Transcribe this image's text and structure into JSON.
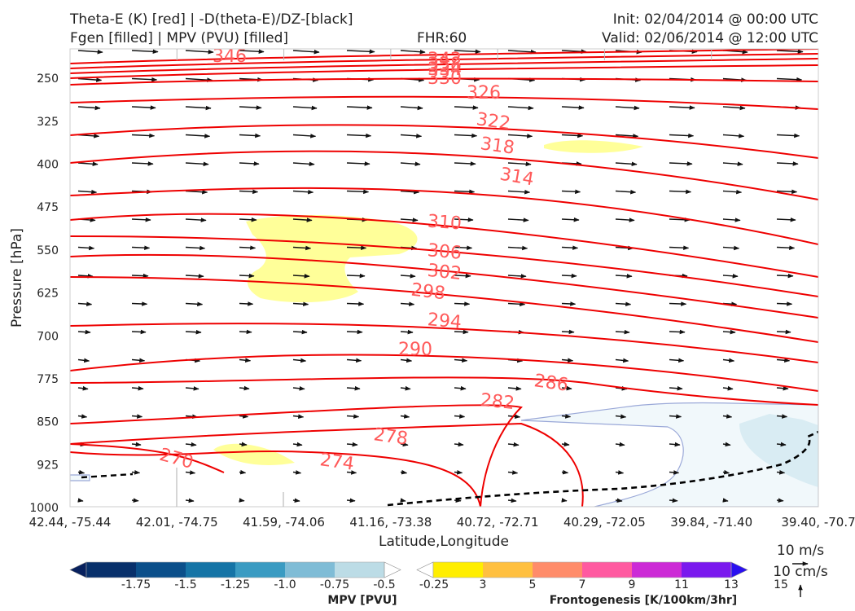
{
  "header": {
    "title_left_1": "Theta-E (K) [red] | -D(theta-E)/DZ-[black]",
    "title_left_2": "Fgen [filled] | MPV (PVU) [filled]",
    "fhr": "FHR:60",
    "init": "Init: 02/04/2014 @ 00:00 UTC",
    "valid": "Valid: 02/06/2014 @ 12:00 UTC"
  },
  "chart_data": {
    "type": "cross-section",
    "ylabel": "Pressure [hPa]",
    "xlabel": "Latitude,Longitude",
    "y_ticks": [
      250,
      325,
      400,
      475,
      550,
      625,
      700,
      775,
      850,
      925,
      1000
    ],
    "ylim": [
      1000,
      200
    ],
    "x_ticks": [
      "42.44, -75.44",
      "42.01, -74.75",
      "41.59, -74.06",
      "41.16, -73.38",
      "40.72, -72.71",
      "40.29, -72.05",
      "39.84, -71.40",
      "39.40, -70.7"
    ],
    "theta_e": {
      "color": "#ee0000",
      "label_color": "#ff5a5a",
      "levels": [
        270,
        274,
        278,
        282,
        286,
        290,
        294,
        298,
        302,
        306,
        310,
        314,
        318,
        322,
        326,
        330,
        334,
        338,
        342,
        346
      ],
      "labeled": [
        270,
        274,
        278,
        282,
        286,
        290,
        294,
        298,
        302,
        306,
        310,
        314,
        318,
        322,
        326,
        330,
        334,
        338,
        342,
        346
      ]
    },
    "dthetae_dz_contour": {
      "color": "#000000",
      "style": "dashed",
      "label": ""
    },
    "mpv_colorbar": {
      "title": "MPV [PVU]",
      "ticks": [
        "-1.75",
        "-1.5",
        "-1.25",
        "-1.0",
        "-0.75",
        "-0.5",
        "-0.25"
      ],
      "colors": [
        "#08215e",
        "#08306b",
        "#0b4f8a",
        "#1574a6",
        "#3a9bc2",
        "#7fbcd6",
        "#bcdce6",
        "#ffffff"
      ]
    },
    "fgen_colorbar": {
      "title": "Frontogenesis [K/100km/3hr]",
      "ticks": [
        "3",
        "5",
        "7",
        "9",
        "11",
        "13",
        "15"
      ],
      "colors": [
        "#ffffff",
        "#ffee00",
        "#ffc040",
        "#ff8c6a",
        "#ff5aa0",
        "#cc2ad6",
        "#7a19ee",
        "#2a10f0"
      ]
    },
    "wind_key": {
      "horizontal": "10 m/s",
      "vertical": "10 cm/s"
    }
  }
}
